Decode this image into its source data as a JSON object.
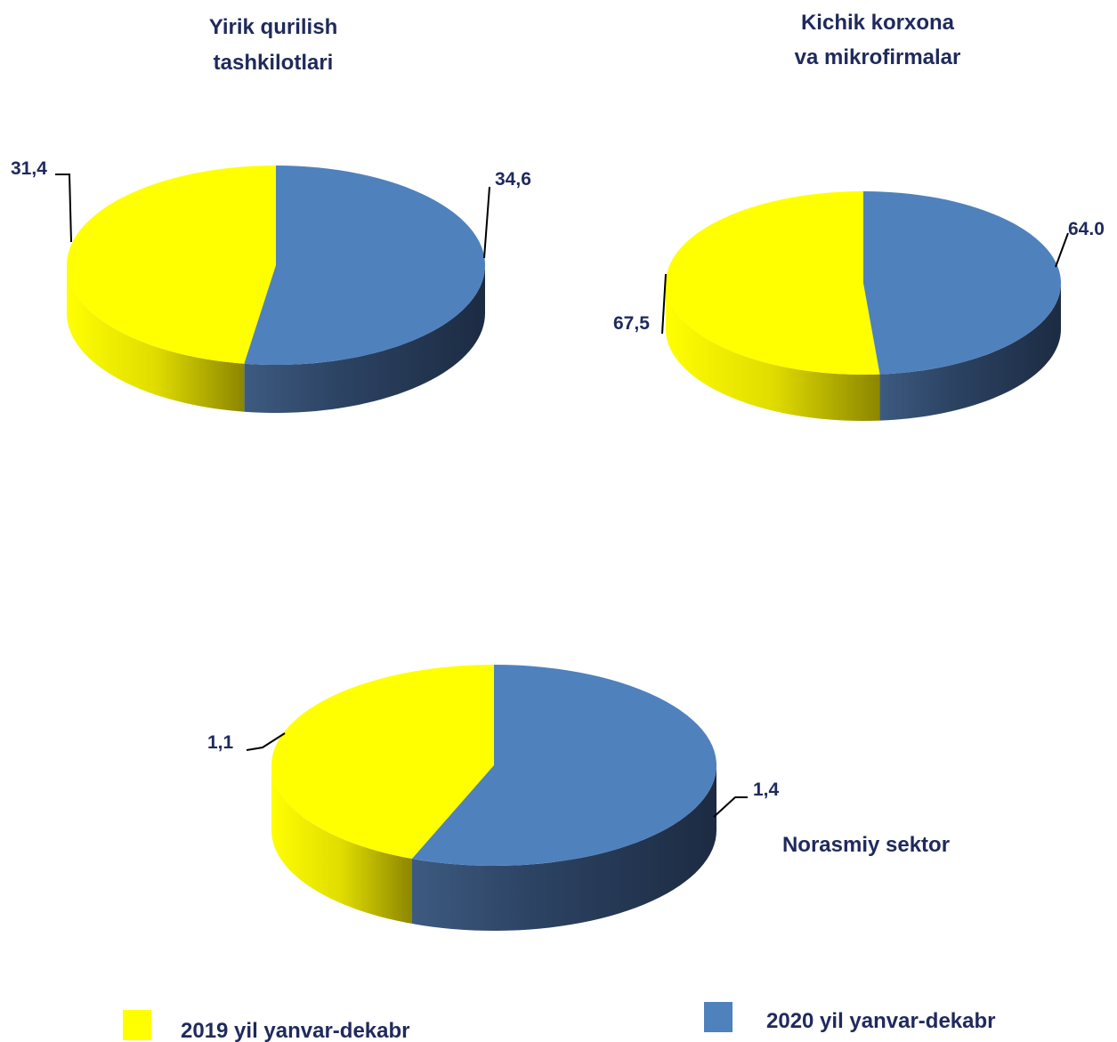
{
  "colors": {
    "text": "#1f2a5c",
    "series_2019": "#ffff00",
    "series_2020": "#4f81bd",
    "leader_line": "#000000"
  },
  "legend": {
    "items": [
      {
        "label": "2019 yil yanvar-dekabr",
        "color": "#ffff00"
      },
      {
        "label": "2020 yil yanvar-dekabr",
        "color": "#4f81bd"
      }
    ]
  },
  "chart_data": [
    {
      "type": "pie",
      "style": "3d",
      "title": "Yirik qurilish tashkilotlari",
      "title_lines": [
        "Yirik qurilish",
        "tashkilotlari"
      ],
      "series_names": [
        "2019 yil yanvar-dekabr",
        "2020 yil yanvar-dekabr"
      ],
      "values": [
        31.4,
        34.6
      ],
      "labels": [
        "31,4",
        "34,6"
      ]
    },
    {
      "type": "pie",
      "style": "3d",
      "title": "Kichik korxona va mikrofirmalar",
      "title_lines": [
        "Kichik korxona",
        "va mikrofirmalar"
      ],
      "series_names": [
        "2019 yil yanvar-dekabr",
        "2020 yil yanvar-dekabr"
      ],
      "values": [
        67.5,
        64.0
      ],
      "labels": [
        "67,5",
        "64.0"
      ]
    },
    {
      "type": "pie",
      "style": "3d",
      "title": "Norasmiy sektor",
      "title_lines": [
        "Norasmiy sektor"
      ],
      "series_names": [
        "2019 yil yanvar-dekabr",
        "2020 yil yanvar-dekabr"
      ],
      "values": [
        1.1,
        1.4
      ],
      "labels": [
        "1,1",
        "1,4"
      ]
    }
  ]
}
